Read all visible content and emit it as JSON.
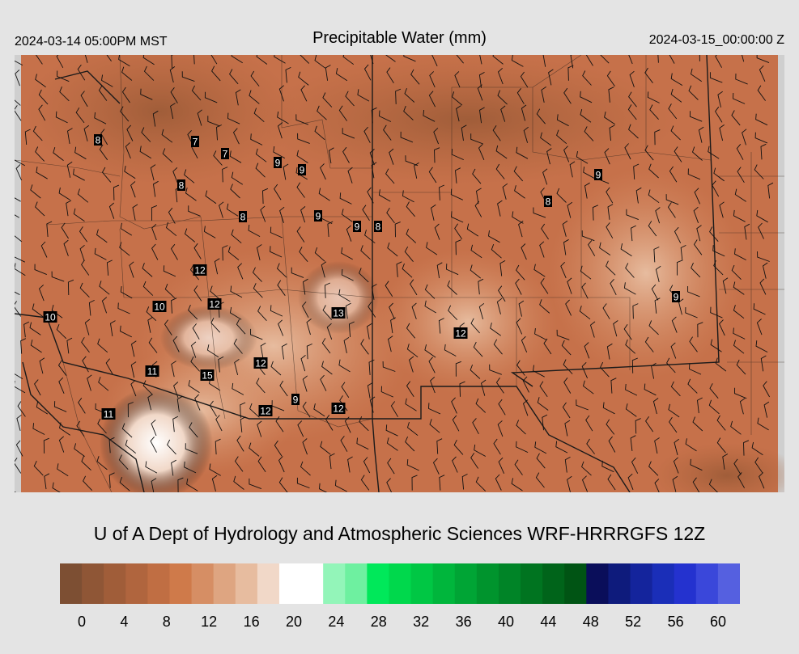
{
  "header": {
    "valid_time_local": "2024-03-14 05:00PM MST",
    "title": "Precipitable Water (mm)",
    "valid_time_utc": "2024-03-15_00:00:00 Z"
  },
  "credit": "U of A Dept of Hydrology and Atmospheric Sciences WRF-HRRRGFS 12Z",
  "colorbar": {
    "colors": [
      "#7d4f33",
      "#8f5636",
      "#a05d39",
      "#b0653e",
      "#c06e43",
      "#cf7a4a",
      "#d68e64",
      "#de a581",
      "#e7bc9f",
      "#f1d8c8",
      "#ffffff",
      "#ffffff",
      "#93f5b9",
      "#6ef0a0",
      "#00e85a",
      "#00d84c",
      "#00c744",
      "#00b63c",
      "#00a535",
      "#00942d",
      "#008427",
      "#007420",
      "#00641a",
      "#005414",
      "#0a0e5a",
      "#0e1b7c",
      "#14249c",
      "#1a2eb8",
      "#2432cf",
      "#3a47da",
      "#5560e0"
    ],
    "tick_labels": [
      "0",
      "4",
      "8",
      "12",
      "16",
      "20",
      "24",
      "28",
      "32",
      "36",
      "40",
      "44",
      "48",
      "52",
      "56",
      "60"
    ]
  },
  "map_labels": [
    {
      "text": "8"
    },
    {
      "text": "7"
    },
    {
      "text": "7"
    },
    {
      "text": "9"
    },
    {
      "text": "9"
    },
    {
      "text": "8"
    },
    {
      "text": "8"
    },
    {
      "text": "9"
    },
    {
      "text": "9"
    },
    {
      "text": "8"
    },
    {
      "text": "9"
    },
    {
      "text": "8"
    },
    {
      "text": "12"
    },
    {
      "text": "10"
    },
    {
      "text": "12"
    },
    {
      "text": "10"
    },
    {
      "text": "13"
    },
    {
      "text": "12"
    },
    {
      "text": "9"
    },
    {
      "text": "11"
    },
    {
      "text": "15"
    },
    {
      "text": "12"
    },
    {
      "text": "9"
    },
    {
      "text": "12"
    },
    {
      "text": "12"
    },
    {
      "text": "11"
    }
  ]
}
